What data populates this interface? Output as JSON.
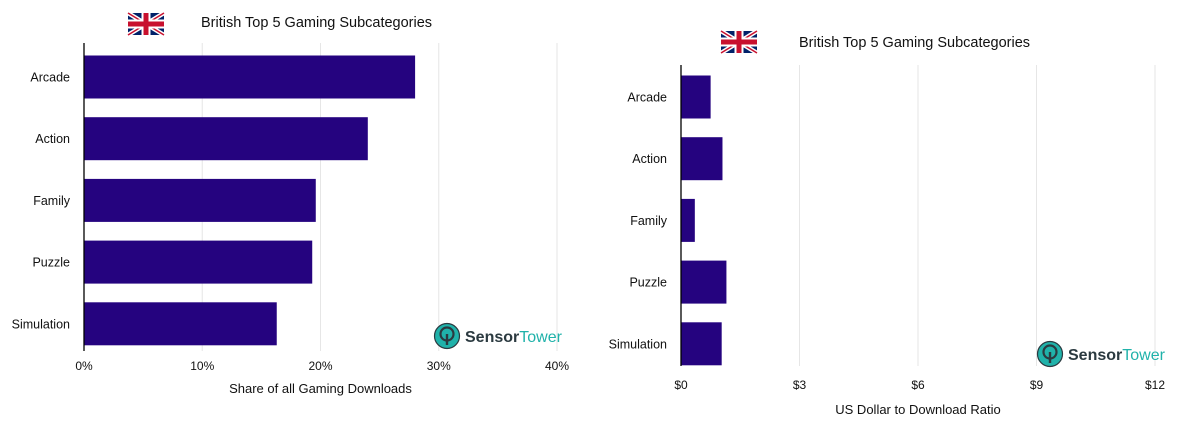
{
  "colors": {
    "bar": "#25037f",
    "grid": "#e6e6e6",
    "axis": "#000000",
    "logo_circle": "#20b2aa",
    "logo_dark": "#2b3a40",
    "flag_blue": "#012169",
    "flag_red": "#c8102e"
  },
  "icons": {
    "flag": "uk-flag-icon",
    "logo": "sensor-tower-logo-icon"
  },
  "logo": {
    "part_a": "Sensor",
    "part_b": "Tower"
  },
  "chart_data": [
    {
      "type": "bar",
      "orientation": "horizontal",
      "title": "British Top 5 Gaming Subcategories",
      "categories": [
        "Arcade",
        "Action",
        "Family",
        "Puzzle",
        "Simulation"
      ],
      "values": [
        28,
        24,
        19.6,
        19.3,
        16.3
      ],
      "xlabel": "Share of all Gaming Downloads",
      "xlim": [
        0,
        40
      ],
      "ticks": [
        0,
        10,
        20,
        30,
        40
      ],
      "tick_labels": [
        "0%",
        "10%",
        "20%",
        "30%",
        "40%"
      ],
      "grid": true
    },
    {
      "type": "bar",
      "orientation": "horizontal",
      "title": "British Top 5 Gaming Subcategories",
      "categories": [
        "Arcade",
        "Action",
        "Family",
        "Puzzle",
        "Simulation"
      ],
      "values": [
        0.75,
        1.05,
        0.35,
        1.15,
        1.03
      ],
      "xlabel": "US Dollar to Download Ratio",
      "xlim": [
        0,
        12
      ],
      "ticks": [
        0,
        3,
        6,
        9,
        12
      ],
      "tick_labels": [
        "$0",
        "$3",
        "$6",
        "$9",
        "$12"
      ],
      "grid": true
    }
  ]
}
